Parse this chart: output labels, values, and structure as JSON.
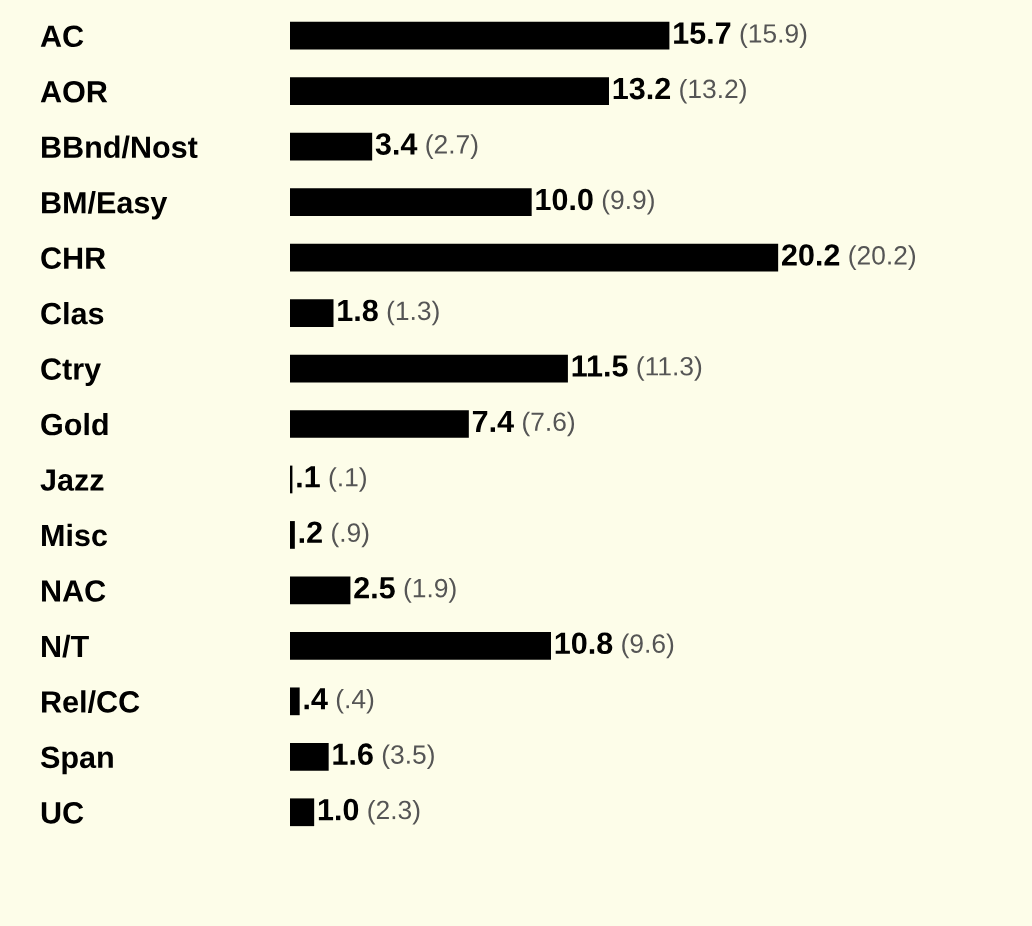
{
  "chart_data": {
    "type": "bar",
    "orientation": "horizontal",
    "categories": [
      "AC",
      "AOR",
      "BBnd/Nost",
      "BM/Easy",
      "CHR",
      "Clas",
      "Ctry",
      "Gold",
      "Jazz",
      "Misc",
      "NAC",
      "N/T",
      "Rel/CC",
      "Span",
      "UC"
    ],
    "values": [
      15.7,
      13.2,
      3.4,
      10.0,
      20.2,
      1.8,
      11.5,
      7.4,
      0.1,
      0.2,
      2.5,
      10.8,
      0.4,
      1.6,
      1.0
    ],
    "value_labels": [
      "15.7 (15.9)",
      "13.2 (13.2)",
      "3.4 (2.7)",
      "10.0 (9.9)",
      "20.2 (20.2)",
      "1.8 (1.3)",
      "11.5 (11.3)",
      "7.4 (7.6)",
      ".1 (.1)",
      ".2 (.9)",
      "2.5 (1.9)",
      "10.8 (9.6)",
      ".4 (.4)",
      "1.6 (3.5)",
      "1.0 (2.3)"
    ],
    "color": "#000000",
    "grid": false,
    "legend": false
  }
}
